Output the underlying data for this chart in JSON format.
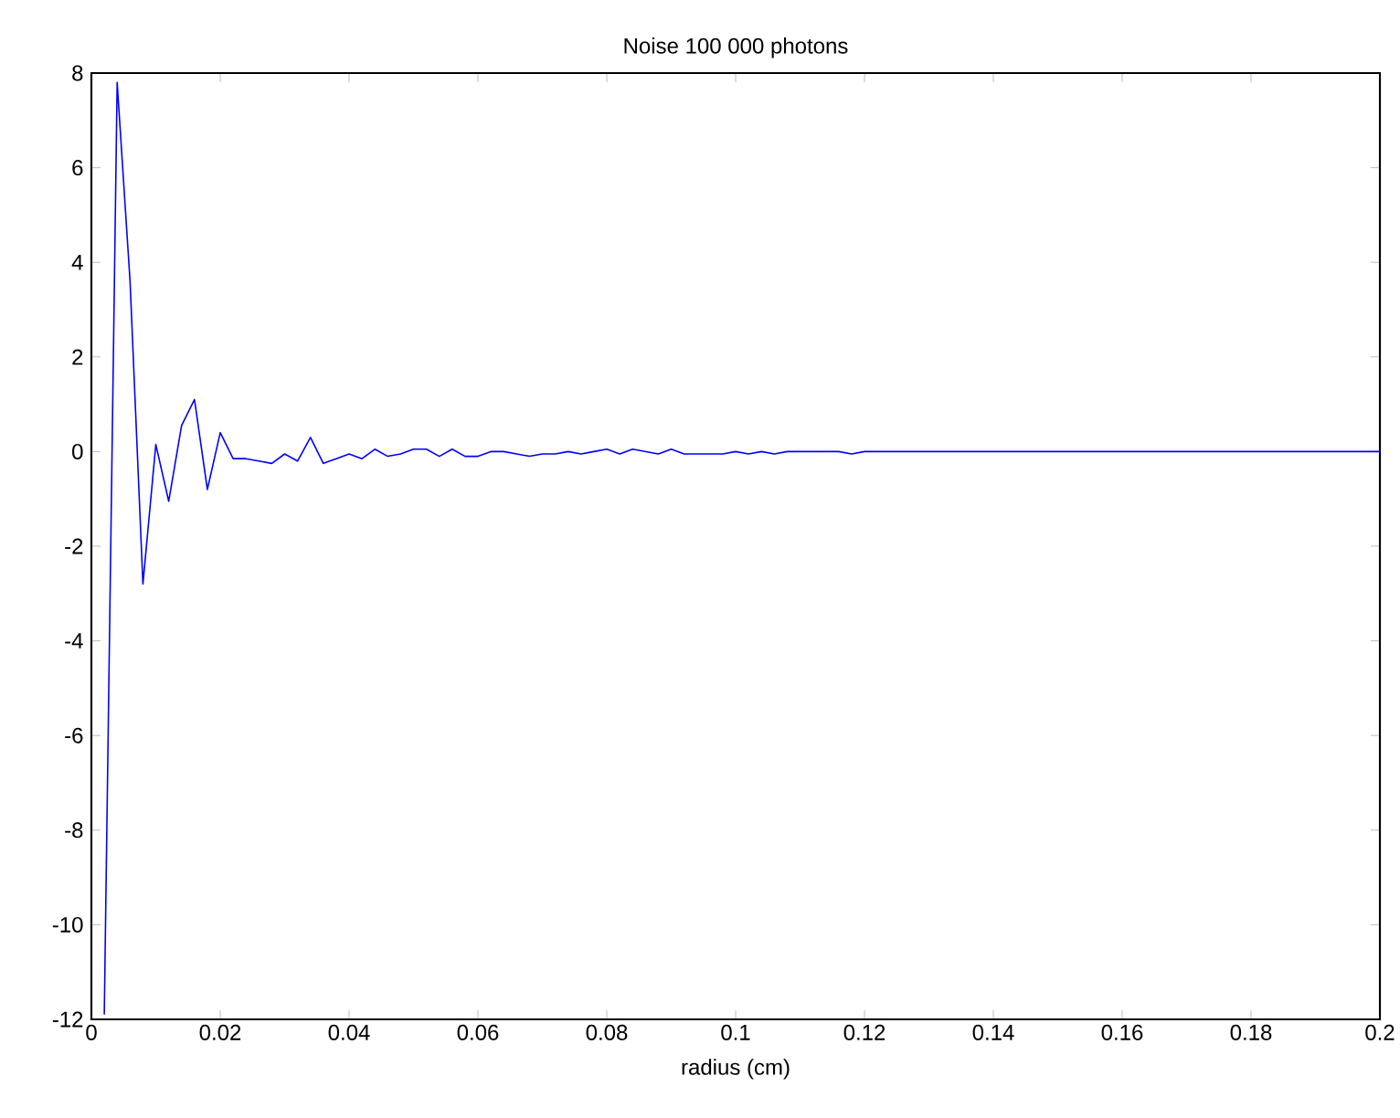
{
  "chart_data": {
    "type": "line",
    "title": "Noise 100 000 photons",
    "xlabel": "radius (cm)",
    "series": [
      {
        "color": "#0000ff",
        "x": [
          0.002,
          0.004,
          0.006,
          0.008,
          0.01,
          0.012,
          0.014,
          0.016,
          0.018,
          0.02,
          0.022,
          0.024,
          0.026,
          0.028,
          0.03,
          0.032,
          0.034,
          0.036,
          0.038,
          0.04,
          0.042,
          0.044,
          0.046,
          0.048,
          0.05,
          0.052,
          0.054,
          0.056,
          0.058,
          0.06,
          0.062,
          0.064,
          0.066,
          0.068,
          0.07,
          0.072,
          0.074,
          0.076,
          0.078,
          0.08,
          0.082,
          0.084,
          0.086,
          0.088,
          0.09,
          0.092,
          0.094,
          0.096,
          0.098,
          0.1,
          0.102,
          0.104,
          0.106,
          0.108,
          0.11,
          0.112,
          0.114,
          0.116,
          0.118,
          0.12,
          0.122,
          0.124,
          0.2
        ],
        "values": [
          -11.9,
          7.8,
          3.6,
          -2.8,
          0.15,
          -1.05,
          0.55,
          1.1,
          -0.8,
          0.4,
          -0.15,
          -0.15,
          -0.2,
          -0.25,
          -0.05,
          -0.2,
          0.3,
          -0.25,
          -0.15,
          -0.05,
          -0.15,
          0.05,
          -0.1,
          -0.05,
          0.05,
          0.05,
          -0.1,
          0.05,
          -0.1,
          -0.1,
          0,
          0,
          -0.05,
          -0.1,
          -0.05,
          -0.05,
          0,
          -0.05,
          0,
          0.05,
          -0.05,
          0.05,
          0,
          -0.05,
          0.05,
          -0.05,
          -0.05,
          -0.05,
          -0.05,
          0,
          -0.05,
          0,
          -0.05,
          0,
          0,
          0,
          0,
          0,
          -0.05,
          0,
          0,
          0,
          0
        ]
      }
    ],
    "xlim": [
      0,
      0.2
    ],
    "xticks": [
      0,
      0.02,
      0.04,
      0.06,
      0.08,
      0.1,
      0.12,
      0.14,
      0.16,
      0.18,
      0.2
    ],
    "ylim": [
      -12,
      8
    ],
    "yticks": [
      -12,
      -10,
      -8,
      -6,
      -4,
      -2,
      0,
      2,
      4,
      6,
      8
    ],
    "grid": false
  }
}
